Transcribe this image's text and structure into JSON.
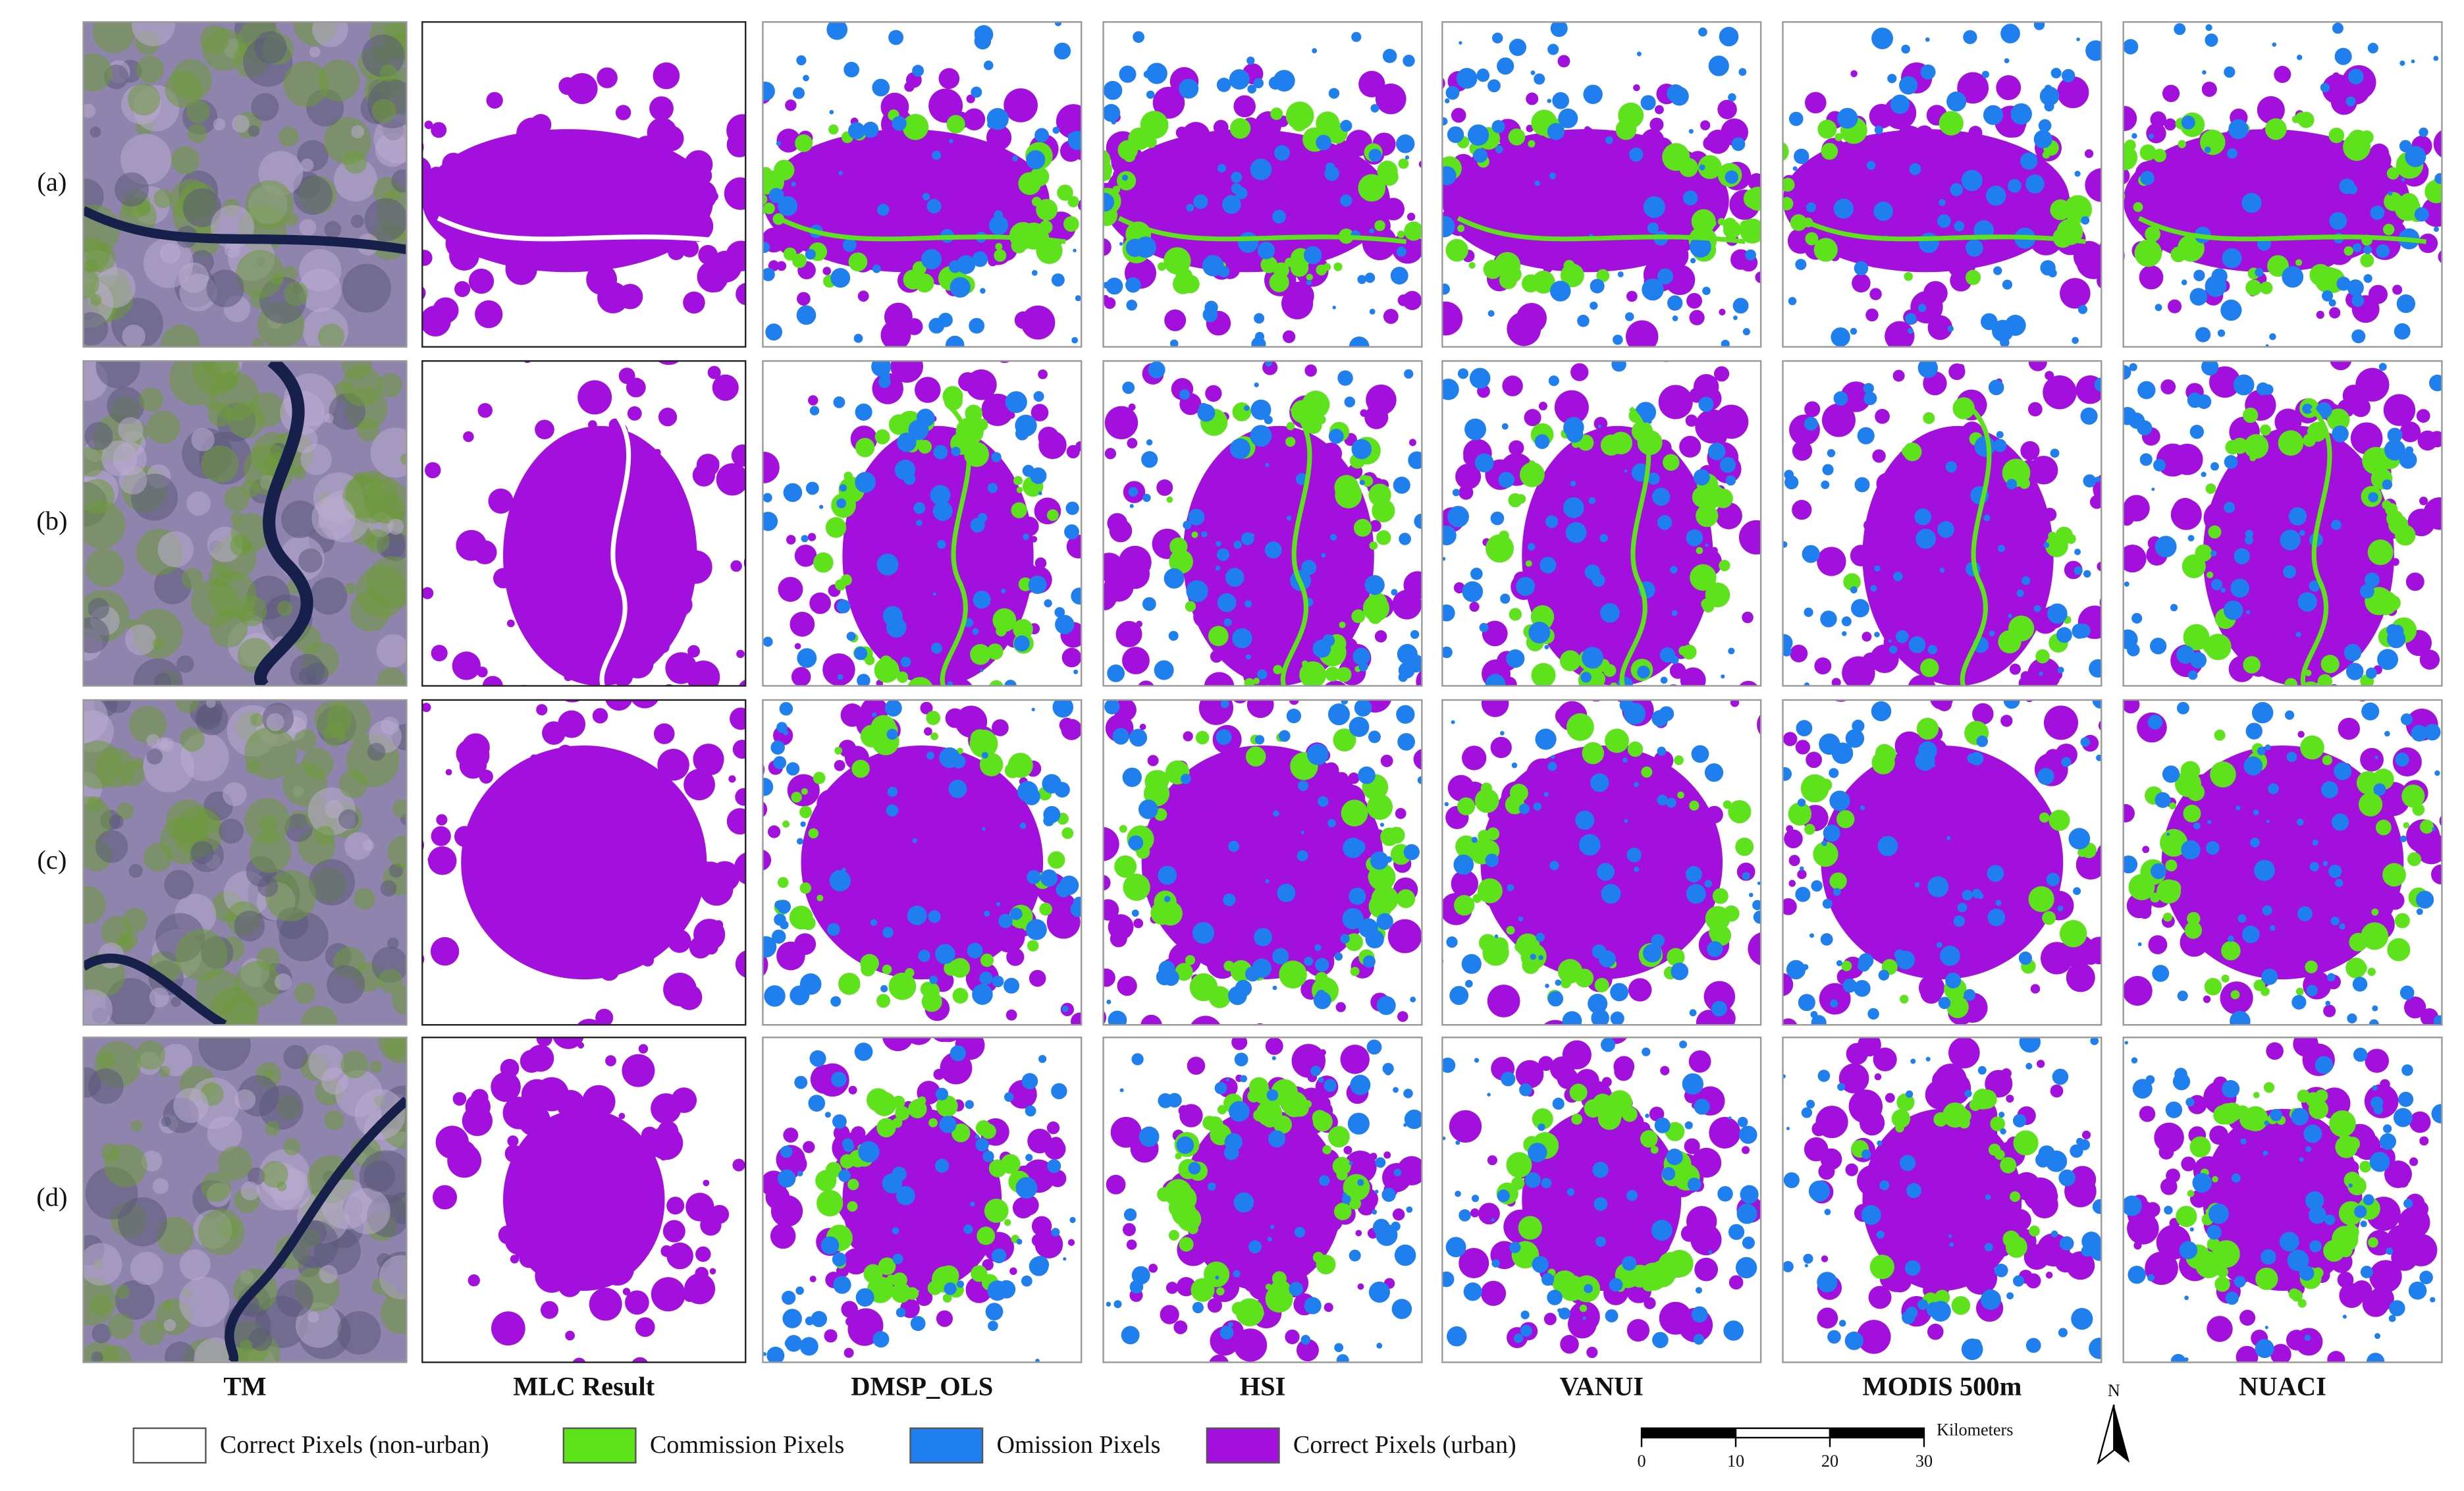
{
  "row_labels": [
    "(a)",
    "(b)",
    "(c)",
    "(d)"
  ],
  "column_labels": [
    "TM",
    "MLC Result",
    "DMSP_OLS",
    "HSI",
    "VANUI",
    "MODIS 500m",
    "NUACI"
  ],
  "legend": [
    {
      "label": "Correct Pixels (non-urban)",
      "color": "#ffffff"
    },
    {
      "label": "Commission Pixels",
      "color": "#5ee21c"
    },
    {
      "label": "Omission Pixels",
      "color": "#1f7fef"
    },
    {
      "label": "Correct Pixels (urban)",
      "color": "#a30fdc"
    }
  ],
  "scale_bar": {
    "ticks": [
      0,
      10,
      20,
      30
    ],
    "unit": "Kilometers"
  },
  "north_arrow": "N"
}
